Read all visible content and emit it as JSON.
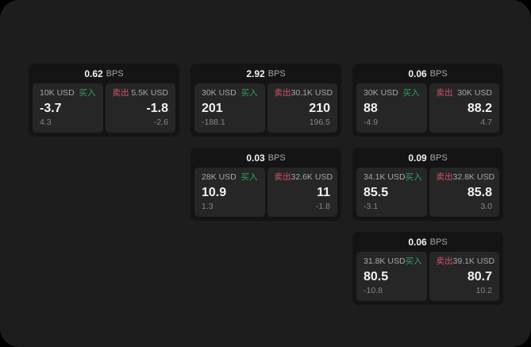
{
  "labels": {
    "bps_unit": "BPS",
    "buy": "买入",
    "sell": "卖出"
  },
  "colors": {
    "background": "#000000",
    "panel": "#1d1d1d",
    "card": "#141414",
    "tile": "#262626",
    "buy_green": "#2ea35e",
    "sell_red": "#cf5466",
    "text_primary": "#f2f2f2",
    "text_secondary": "#a6a6a6",
    "text_muted": "#858585"
  },
  "cards": [
    {
      "bps": "0.62",
      "buy": {
        "amount": "10K USD",
        "main": "-3.7",
        "sub": "4.3"
      },
      "sell": {
        "amount": "5.5K USD",
        "main": "-1.8",
        "sub": "-2.6"
      }
    },
    {
      "bps": "2.92",
      "buy": {
        "amount": "30K USD",
        "main": "201",
        "sub": "-188.1"
      },
      "sell": {
        "amount": "30.1K USD",
        "main": "210",
        "sub": "196.5"
      }
    },
    {
      "bps": "0.06",
      "buy": {
        "amount": "30K USD",
        "main": "88",
        "sub": "-4.9"
      },
      "sell": {
        "amount": "30K USD",
        "main": "88.2",
        "sub": "4.7"
      }
    },
    {
      "bps": "0.03",
      "buy": {
        "amount": "28K USD",
        "main": "10.9",
        "sub": "1.3"
      },
      "sell": {
        "amount": "32.6K USD",
        "main": "11",
        "sub": "-1.8"
      }
    },
    {
      "bps": "0.09",
      "buy": {
        "amount": "34.1K USD",
        "main": "85.5",
        "sub": "-3.1"
      },
      "sell": {
        "amount": "32.8K USD",
        "main": "85.8",
        "sub": "3.0"
      }
    },
    {
      "bps": "0.06",
      "buy": {
        "amount": "31.8K USD",
        "main": "80.5",
        "sub": "-10.8"
      },
      "sell": {
        "amount": "39.1K USD",
        "main": "80.7",
        "sub": "10.2"
      }
    }
  ]
}
